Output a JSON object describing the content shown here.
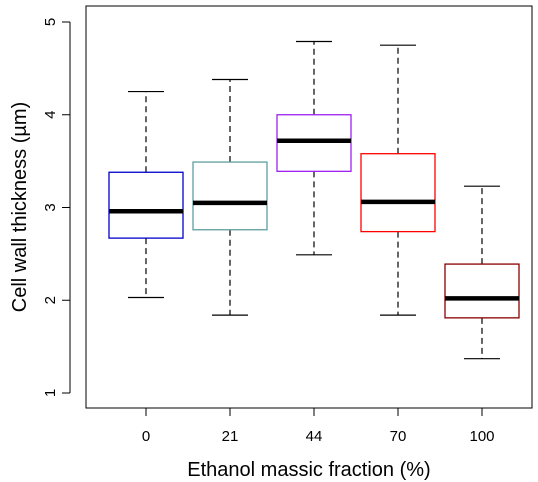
{
  "chart_data": {
    "type": "boxplot",
    "title": "",
    "xlabel": "Ethanol massic fraction (%)",
    "ylabel": "Cell wall thickness (µm)",
    "ylim": [
      0.8,
      5.2
    ],
    "yticks": [
      "1",
      "2",
      "3",
      "4",
      "5"
    ],
    "grid": false,
    "categories": [
      "0",
      "21",
      "44",
      "70",
      "100"
    ],
    "boxes": [
      {
        "category": "0",
        "min": 2.03,
        "q1": 2.67,
        "median": 2.96,
        "q3": 3.38,
        "max": 4.25,
        "color": "#0000cc"
      },
      {
        "category": "21",
        "min": 1.84,
        "q1": 2.76,
        "median": 3.05,
        "q3": 3.49,
        "max": 4.38,
        "color": "#5f9ea0"
      },
      {
        "category": "44",
        "min": 2.49,
        "q1": 3.39,
        "median": 3.72,
        "q3": 4.0,
        "max": 4.79,
        "color": "#a020f0"
      },
      {
        "category": "70",
        "min": 1.84,
        "q1": 2.74,
        "median": 3.06,
        "q3": 3.58,
        "max": 4.75,
        "color": "#ff0000"
      },
      {
        "category": "100",
        "min": 1.37,
        "q1": 1.81,
        "median": 2.02,
        "q3": 2.39,
        "max": 3.23,
        "color": "#8b0000"
      }
    ]
  }
}
